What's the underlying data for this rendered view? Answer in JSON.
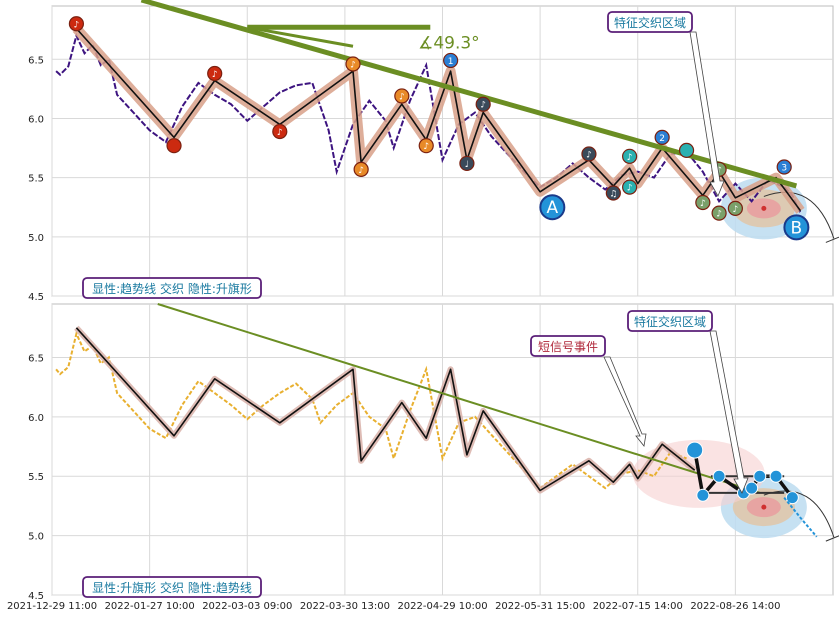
{
  "chart_data": [
    {
      "type": "line",
      "panel": "top",
      "ylim": [
        4.5,
        6.95
      ],
      "yticks": [
        4.5,
        5.0,
        5.5,
        6.0,
        6.5
      ],
      "price_series": [
        [
          0.5,
          6.4
        ],
        [
          1,
          6.37
        ],
        [
          2,
          6.44
        ],
        [
          3,
          6.7
        ],
        [
          4,
          6.55
        ],
        [
          5,
          6.62
        ],
        [
          6,
          6.45
        ],
        [
          7,
          6.5
        ],
        [
          8,
          6.2
        ],
        [
          10,
          6.05
        ],
        [
          12,
          5.9
        ],
        [
          14,
          5.8
        ],
        [
          16,
          6.1
        ],
        [
          18,
          6.3
        ],
        [
          20,
          6.2
        ],
        [
          22,
          6.12
        ],
        [
          24,
          5.98
        ],
        [
          26,
          6.1
        ],
        [
          28,
          6.22
        ],
        [
          30,
          6.28
        ],
        [
          32,
          6.3
        ],
        [
          34,
          5.9
        ],
        [
          35,
          5.55
        ],
        [
          37,
          5.95
        ],
        [
          39,
          6.15
        ],
        [
          41,
          5.98
        ],
        [
          42,
          5.75
        ],
        [
          44,
          6.15
        ],
        [
          46,
          6.45
        ],
        [
          48,
          5.65
        ],
        [
          50,
          5.95
        ],
        [
          52,
          6.05
        ],
        [
          54,
          5.85
        ],
        [
          56,
          5.7
        ],
        [
          58,
          5.55
        ],
        [
          60,
          5.42
        ],
        [
          62,
          5.5
        ],
        [
          64,
          5.62
        ],
        [
          66,
          5.5
        ],
        [
          68,
          5.4
        ],
        [
          70,
          5.52
        ],
        [
          72,
          5.55
        ],
        [
          74,
          5.5
        ],
        [
          76,
          5.7
        ],
        [
          78,
          5.72
        ],
        [
          80,
          5.55
        ],
        [
          82,
          5.3
        ],
        [
          84,
          5.45
        ],
        [
          86,
          5.3
        ],
        [
          88,
          5.48
        ],
        [
          90,
          5.42
        ],
        [
          91,
          5.35
        ],
        [
          92,
          5.2
        ]
      ],
      "zigzag": [
        [
          3,
          6.76
        ],
        [
          15,
          5.84
        ],
        [
          20,
          6.32
        ],
        [
          28,
          5.95
        ],
        [
          37,
          6.4
        ],
        [
          38,
          5.63
        ],
        [
          43,
          6.12
        ],
        [
          46,
          5.82
        ],
        [
          49,
          6.4
        ],
        [
          51,
          5.65
        ],
        [
          53,
          6.05
        ],
        [
          60,
          5.38
        ],
        [
          66,
          5.65
        ],
        [
          69,
          5.43
        ],
        [
          71,
          5.58
        ],
        [
          72,
          5.45
        ],
        [
          75,
          5.75
        ],
        [
          80,
          5.35
        ],
        [
          82,
          5.55
        ],
        [
          84,
          5.33
        ],
        [
          89,
          5.5
        ],
        [
          92,
          5.22
        ]
      ],
      "markers": [
        {
          "x": 3,
          "y": 6.8,
          "color": "#cc2a10",
          "sym": "♪"
        },
        {
          "x": 15,
          "y": 5.77,
          "color": "#cc2a10",
          "sym": ""
        },
        {
          "x": 20,
          "y": 6.38,
          "color": "#cc2a10",
          "sym": "♪"
        },
        {
          "x": 28,
          "y": 5.89,
          "color": "#cc2a10",
          "sym": "♪"
        },
        {
          "x": 37,
          "y": 6.46,
          "color": "#e88a28",
          "sym": "♪"
        },
        {
          "x": 38,
          "y": 5.57,
          "color": "#e88a28",
          "sym": "♪"
        },
        {
          "x": 43,
          "y": 6.19,
          "color": "#e88a28",
          "sym": "♪"
        },
        {
          "x": 46,
          "y": 5.77,
          "color": "#e88a28",
          "sym": "♪"
        },
        {
          "x": 49,
          "y": 6.49,
          "color": "#2b7fd4",
          "sym": "1"
        },
        {
          "x": 51,
          "y": 5.62,
          "color": "#3a4a5a",
          "sym": "♩"
        },
        {
          "x": 53,
          "y": 6.12,
          "color": "#3a4a5a",
          "sym": "♪"
        },
        {
          "x": 66,
          "y": 5.7,
          "color": "#3a4a5a",
          "sym": "♪"
        },
        {
          "x": 69,
          "y": 5.37,
          "color": "#3a4a5a",
          "sym": "♫"
        },
        {
          "x": 71,
          "y": 5.68,
          "color": "#2ab0b0",
          "sym": "♪"
        },
        {
          "x": 71,
          "y": 5.42,
          "color": "#2ab0b0",
          "sym": "♪"
        },
        {
          "x": 75,
          "y": 5.84,
          "color": "#2b7fd4",
          "sym": "2"
        },
        {
          "x": 78,
          "y": 5.73,
          "color": "#2ab0b0",
          "sym": ""
        },
        {
          "x": 80,
          "y": 5.29,
          "color": "#7aa06a",
          "sym": "♪"
        },
        {
          "x": 82,
          "y": 5.57,
          "color": "#7aa06a",
          "sym": "♪"
        },
        {
          "x": 82,
          "y": 5.2,
          "color": "#7aa06a",
          "sym": "♪"
        },
        {
          "x": 84,
          "y": 5.24,
          "color": "#7aa06a",
          "sym": "♪"
        },
        {
          "x": 90,
          "y": 5.59,
          "color": "#2b7fd4",
          "sym": "3"
        }
      ],
      "angle_label": "∡49.3°",
      "point_labels": [
        "A",
        "B"
      ],
      "annotation_label": "特征交织区域",
      "legend_label": "显性:趋势线 交织 隐性:升旗形"
    },
    {
      "type": "line",
      "panel": "bottom",
      "ylim": [
        4.5,
        6.95
      ],
      "yticks": [
        4.5,
        5.0,
        5.5,
        6.0,
        6.5
      ],
      "price_series": [
        [
          0.5,
          6.4
        ],
        [
          1,
          6.36
        ],
        [
          2,
          6.42
        ],
        [
          3,
          6.7
        ],
        [
          4,
          6.55
        ],
        [
          5,
          6.6
        ],
        [
          6,
          6.45
        ],
        [
          7,
          6.5
        ],
        [
          8,
          6.2
        ],
        [
          10,
          6.05
        ],
        [
          12,
          5.9
        ],
        [
          14,
          5.82
        ],
        [
          16,
          6.1
        ],
        [
          18,
          6.3
        ],
        [
          20,
          6.2
        ],
        [
          22,
          6.1
        ],
        [
          24,
          5.98
        ],
        [
          26,
          6.1
        ],
        [
          28,
          6.2
        ],
        [
          30,
          6.28
        ],
        [
          32,
          6.15
        ],
        [
          33,
          5.95
        ],
        [
          35,
          6.1
        ],
        [
          37,
          6.2
        ],
        [
          39,
          6.0
        ],
        [
          41,
          5.9
        ],
        [
          42,
          5.65
        ],
        [
          44,
          6.05
        ],
        [
          46,
          6.4
        ],
        [
          48,
          5.65
        ],
        [
          50,
          5.95
        ],
        [
          52,
          6.0
        ],
        [
          54,
          5.85
        ],
        [
          56,
          5.7
        ],
        [
          58,
          5.55
        ],
        [
          60,
          5.4
        ],
        [
          62,
          5.5
        ],
        [
          64,
          5.6
        ],
        [
          66,
          5.5
        ],
        [
          68,
          5.4
        ],
        [
          70,
          5.52
        ],
        [
          72,
          5.55
        ],
        [
          74,
          5.5
        ],
        [
          76,
          5.7
        ],
        [
          78,
          5.65
        ]
      ],
      "zigzag": [
        [
          3,
          6.75
        ],
        [
          15,
          5.84
        ],
        [
          20,
          6.32
        ],
        [
          28,
          5.95
        ],
        [
          37,
          6.4
        ],
        [
          38,
          5.63
        ],
        [
          43,
          6.12
        ],
        [
          46,
          5.82
        ],
        [
          49,
          6.4
        ],
        [
          51,
          5.68
        ],
        [
          53,
          6.05
        ],
        [
          60,
          5.38
        ],
        [
          66,
          5.63
        ],
        [
          69,
          5.45
        ],
        [
          71,
          5.6
        ],
        [
          72,
          5.48
        ],
        [
          75,
          5.77
        ],
        [
          79,
          5.55
        ]
      ],
      "pattern_points": [
        [
          79,
          5.72
        ],
        [
          80,
          5.34
        ],
        [
          82,
          5.5
        ],
        [
          85,
          5.36
        ],
        [
          86,
          5.4
        ],
        [
          87,
          5.5
        ],
        [
          89,
          5.5
        ],
        [
          91,
          5.32
        ]
      ],
      "signal_label": "短信号事件",
      "annotation_label": "特征交织区域",
      "legend_label": "显性:升旗形 交织 隐性:趋势线"
    }
  ],
  "x_axis": {
    "labels": [
      "2021-12-29 11:00",
      "2022-01-27 10:00",
      "2022-03-03 09:00",
      "2022-03-30 13:00",
      "2022-04-29 10:00",
      "2022-05-31 15:00",
      "2022-07-15 14:00",
      "2022-08-26 14:00"
    ],
    "positions": [
      0,
      12,
      24,
      36,
      48,
      60,
      72,
      84
    ]
  },
  "colors": {
    "trend_top": "#6b8e23",
    "trend_bottom": "#6b8e23",
    "price_top": "#3d1480",
    "price_bottom": "#e8b030",
    "zigzag": "#111111",
    "box_border": "#5a1e78",
    "box_text": "#1a7aa0",
    "signal_text": "#b0283a",
    "grid": "#d9d9d9"
  }
}
